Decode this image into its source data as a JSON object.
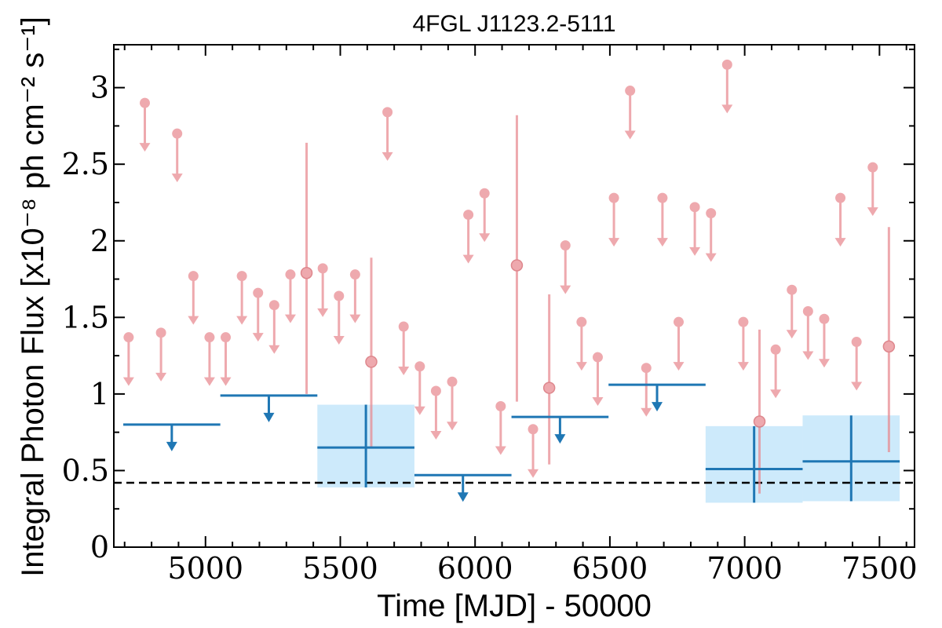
{
  "chart_data": {
    "type": "scatter",
    "title": "4FGL J1123.2-5111",
    "xlabel": "Time [MJD] - 50000",
    "ylabel": "Integral Photon Flux [x10⁻⁸ ph cm⁻² s⁻¹]",
    "xlim": [
      4660,
      7630
    ],
    "ylim": [
      0,
      3.28
    ],
    "x_ticks": [
      5000,
      5500,
      6000,
      6500,
      7000,
      7500
    ],
    "x_tick_labels": [
      "5000",
      "5500",
      "6000",
      "6500",
      "7000",
      "7500"
    ],
    "y_ticks": [
      0,
      0.5,
      1,
      1.5,
      2,
      2.5,
      3
    ],
    "y_tick_labels": [
      "0",
      "0.5",
      "1",
      "1.5",
      "2",
      "2.5",
      "3"
    ],
    "reference_line": {
      "y": 0.42,
      "style": "dashed"
    },
    "colors": {
      "fine_bins": "#e8888f",
      "coarse_bins": "#1f77b4",
      "error_band": "#cdeafb",
      "reference": "#000000"
    },
    "series": [
      {
        "binning": "fine",
        "upper_limits": [
          {
            "x": 4715,
            "y": 1.37
          },
          {
            "x": 4775,
            "y": 2.9
          },
          {
            "x": 4835,
            "y": 1.4
          },
          {
            "x": 4895,
            "y": 2.7
          },
          {
            "x": 4955,
            "y": 1.77
          },
          {
            "x": 5015,
            "y": 1.37
          },
          {
            "x": 5075,
            "y": 1.37
          },
          {
            "x": 5135,
            "y": 1.77
          },
          {
            "x": 5195,
            "y": 1.66
          },
          {
            "x": 5255,
            "y": 1.58
          },
          {
            "x": 5315,
            "y": 1.78
          },
          {
            "x": 5435,
            "y": 1.82
          },
          {
            "x": 5495,
            "y": 1.64
          },
          {
            "x": 5555,
            "y": 1.78
          },
          {
            "x": 5675,
            "y": 2.84
          },
          {
            "x": 5735,
            "y": 1.44
          },
          {
            "x": 5795,
            "y": 1.18
          },
          {
            "x": 5855,
            "y": 1.02
          },
          {
            "x": 5915,
            "y": 1.08
          },
          {
            "x": 5975,
            "y": 2.17
          },
          {
            "x": 6035,
            "y": 2.31
          },
          {
            "x": 6095,
            "y": 0.92
          },
          {
            "x": 6215,
            "y": 0.77
          },
          {
            "x": 6335,
            "y": 1.97
          },
          {
            "x": 6395,
            "y": 1.47
          },
          {
            "x": 6455,
            "y": 1.24
          },
          {
            "x": 6515,
            "y": 2.28
          },
          {
            "x": 6575,
            "y": 2.98
          },
          {
            "x": 6635,
            "y": 1.17
          },
          {
            "x": 6695,
            "y": 2.28
          },
          {
            "x": 6755,
            "y": 1.47
          },
          {
            "x": 6815,
            "y": 2.22
          },
          {
            "x": 6875,
            "y": 2.18
          },
          {
            "x": 6935,
            "y": 3.15
          },
          {
            "x": 6995,
            "y": 1.47
          },
          {
            "x": 7115,
            "y": 1.29
          },
          {
            "x": 7175,
            "y": 1.68
          },
          {
            "x": 7235,
            "y": 1.54
          },
          {
            "x": 7295,
            "y": 1.49
          },
          {
            "x": 7355,
            "y": 2.28
          },
          {
            "x": 7415,
            "y": 1.34
          },
          {
            "x": 7475,
            "y": 2.48
          }
        ],
        "detections": [
          {
            "x": 5375,
            "y": 1.79,
            "y_low": 1.0,
            "y_high": 2.64
          },
          {
            "x": 5615,
            "y": 1.21,
            "y_low": 0.65,
            "y_high": 1.89
          },
          {
            "x": 6155,
            "y": 1.84,
            "y_low": 0.95,
            "y_high": 2.82
          },
          {
            "x": 6275,
            "y": 1.04,
            "y_low": 0.54,
            "y_high": 1.65
          },
          {
            "x": 7055,
            "y": 0.82,
            "y_low": 0.35,
            "y_high": 1.42
          },
          {
            "x": 7535,
            "y": 1.31,
            "y_low": 0.62,
            "y_high": 2.09
          }
        ]
      },
      {
        "binning": "coarse",
        "upper_limits": [
          {
            "x_start": 4695,
            "x_end": 5055,
            "x_arrow": 4875,
            "y": 0.8
          },
          {
            "x_start": 5055,
            "x_end": 5415,
            "x_arrow": 5235,
            "y": 0.99
          },
          {
            "x_start": 5775,
            "x_end": 6135,
            "x_arrow": 5955,
            "y": 0.47
          },
          {
            "x_start": 6135,
            "x_end": 6495,
            "x_arrow": 6315,
            "y": 0.85
          },
          {
            "x_start": 6495,
            "x_end": 6855,
            "x_arrow": 6675,
            "y": 1.06
          }
        ],
        "detections": [
          {
            "x": 5595,
            "x_start": 5415,
            "x_end": 5775,
            "y": 0.65,
            "y_low": 0.39,
            "y_high": 0.93
          },
          {
            "x": 7035,
            "x_start": 6855,
            "x_end": 7215,
            "y": 0.51,
            "y_low": 0.29,
            "y_high": 0.79
          },
          {
            "x": 7395,
            "x_start": 7215,
            "x_end": 7575,
            "y": 0.56,
            "y_low": 0.3,
            "y_high": 0.86
          }
        ]
      }
    ]
  }
}
